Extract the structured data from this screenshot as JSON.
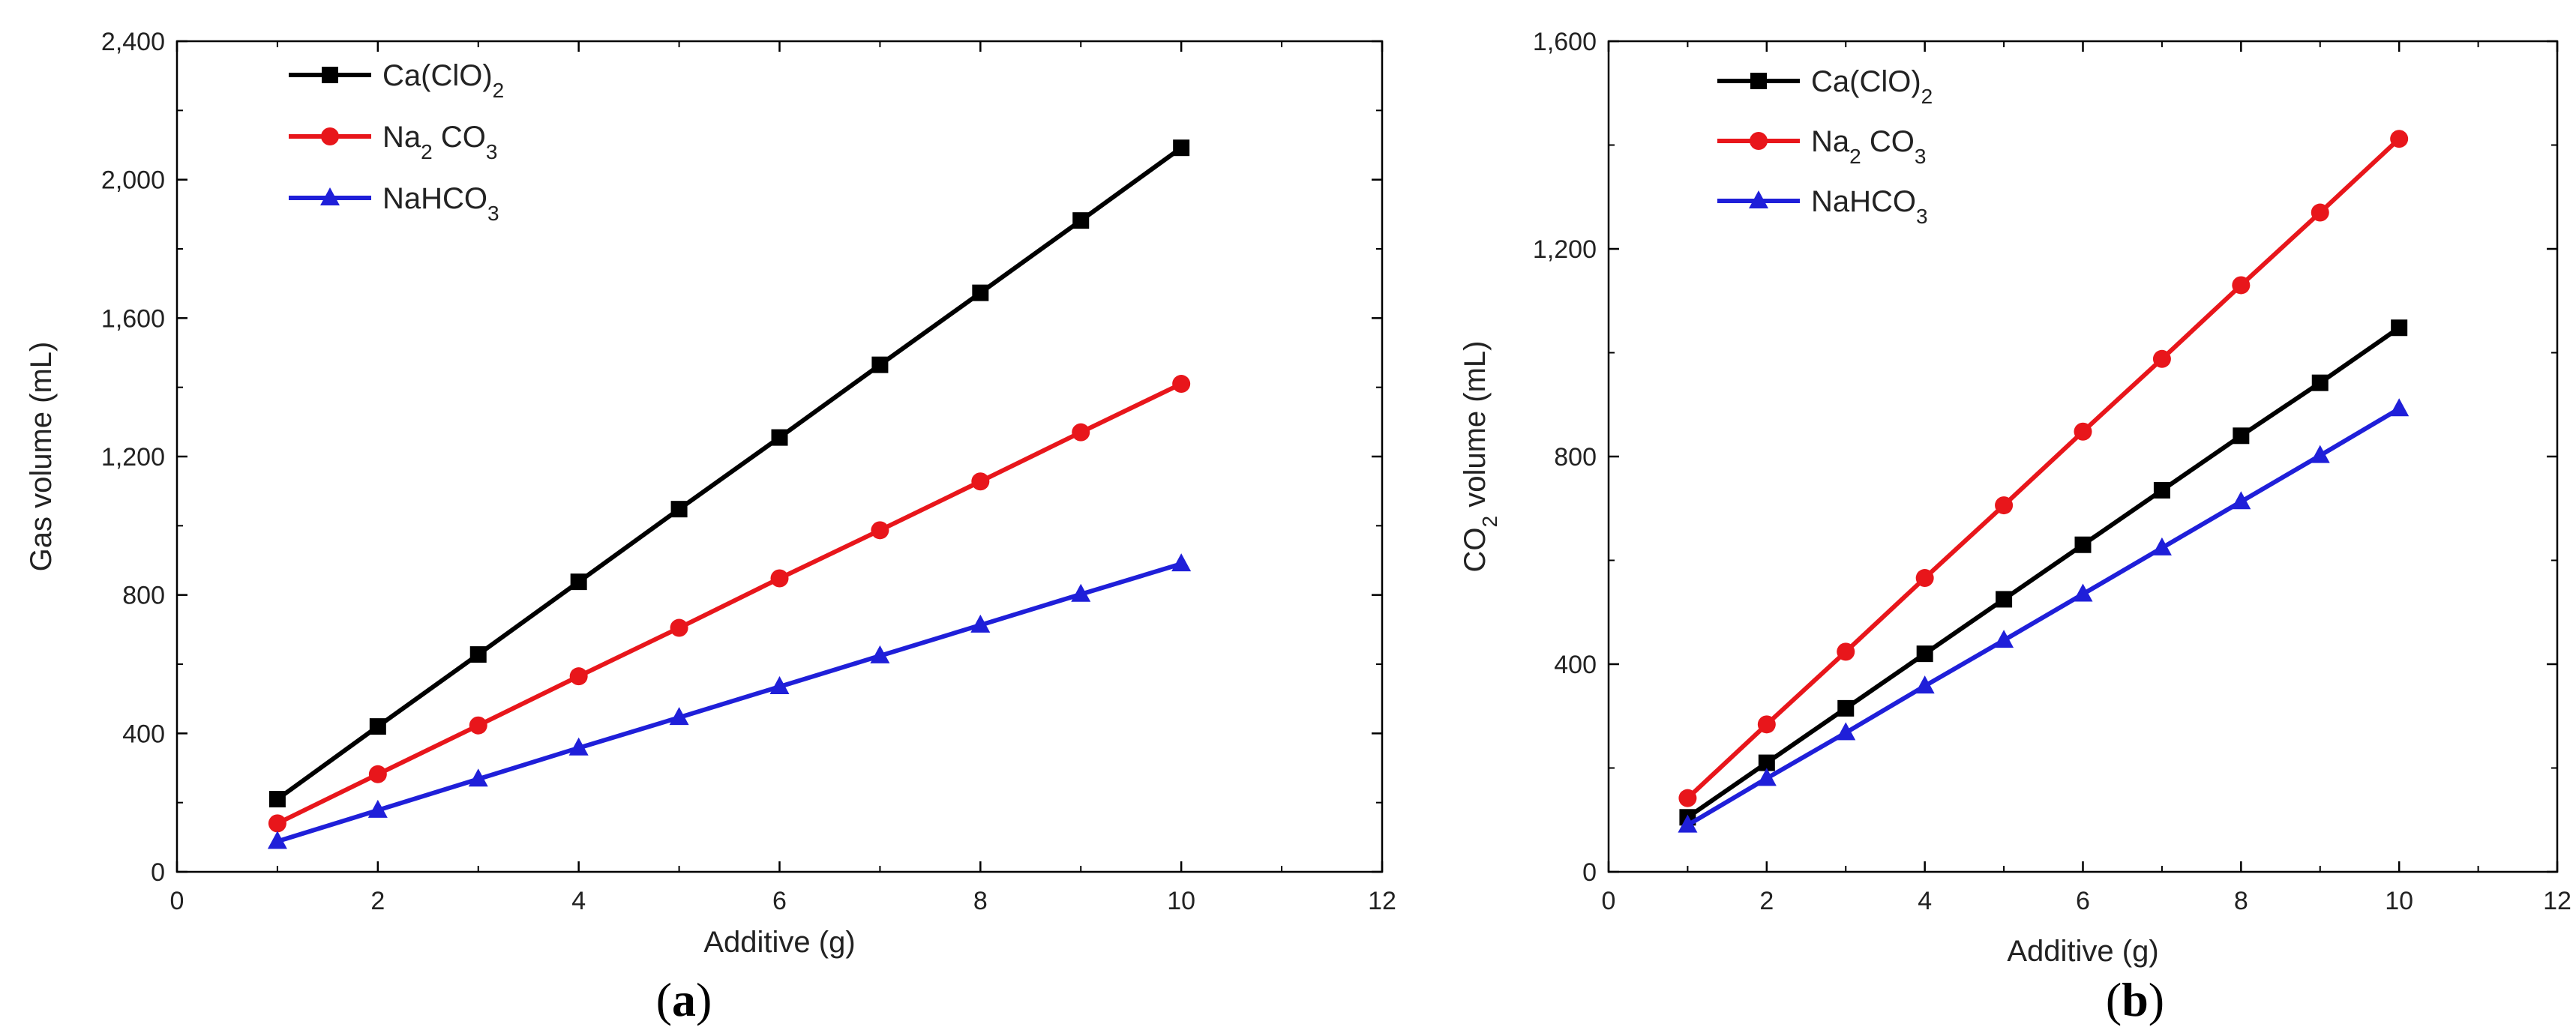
{
  "chart_data": [
    {
      "type": "line",
      "panel_label": "(a)",
      "panel_letter": "a",
      "title": "",
      "xlabel": "Additive (g)",
      "ylabel": "Gas volume (mL)",
      "xlim": [
        0,
        12
      ],
      "ylim": [
        0,
        2400
      ],
      "x_ticks": [
        0,
        2,
        4,
        6,
        8,
        10,
        12
      ],
      "y_ticks": [
        0,
        400,
        800,
        1200,
        1600,
        2000,
        2400
      ],
      "x_tick_labels": [
        "0",
        "2",
        "4",
        "6",
        "8",
        "10",
        "12"
      ],
      "y_tick_labels": [
        "0",
        "400",
        "800",
        "1,200",
        "1,600",
        "2,000",
        "2,400"
      ],
      "grid": false,
      "legend_position": "top-left",
      "x": [
        1,
        2,
        3,
        4,
        5,
        6,
        7,
        8,
        9,
        10
      ],
      "series": [
        {
          "name": "Ca(ClO)2",
          "label_parts": [
            {
              "t": "Ca(ClO)"
            },
            {
              "t": "2",
              "sub": true
            }
          ],
          "color": "#000000",
          "marker": "square",
          "values": [
            210,
            420,
            628,
            838,
            1048,
            1255,
            1465,
            1673,
            1882,
            2092
          ]
        },
        {
          "name": "Na2 CO3",
          "label_parts": [
            {
              "t": "Na"
            },
            {
              "t": "2",
              "sub": true
            },
            {
              "t": " CO"
            },
            {
              "t": "3",
              "sub": true
            }
          ],
          "color": "#e8161b",
          "marker": "circle",
          "values": [
            140,
            282,
            423,
            565,
            705,
            848,
            987,
            1128,
            1270,
            1410
          ]
        },
        {
          "name": "NaHCO3",
          "label_parts": [
            {
              "t": "NaHCO"
            },
            {
              "t": "3",
              "sub": true
            }
          ],
          "color": "#1f1fd9",
          "marker": "triangle",
          "values": [
            88,
            178,
            268,
            358,
            446,
            535,
            624,
            713,
            802,
            890
          ]
        }
      ]
    },
    {
      "type": "line",
      "panel_label": "(b)",
      "panel_letter": "b",
      "title": "",
      "xlabel": "Additive (g)",
      "ylabel": "CO2 volume (mL)",
      "xlim": [
        0,
        12
      ],
      "ylim": [
        0,
        1600
      ],
      "x_ticks": [
        0,
        2,
        4,
        6,
        8,
        10,
        12
      ],
      "y_ticks": [
        0,
        400,
        800,
        1200,
        1600
      ],
      "x_tick_labels": [
        "0",
        "2",
        "4",
        "6",
        "8",
        "10",
        "12"
      ],
      "y_tick_labels": [
        "0",
        "400",
        "800",
        "1,200",
        "1,600"
      ],
      "grid": false,
      "legend_position": "top-left",
      "x": [
        1,
        2,
        3,
        4,
        5,
        6,
        7,
        8,
        9,
        10
      ],
      "series": [
        {
          "name": "Ca(ClO)2",
          "label_parts": [
            {
              "t": "Ca(ClO)"
            },
            {
              "t": "2",
              "sub": true
            }
          ],
          "color": "#000000",
          "marker": "square",
          "values": [
            105,
            210,
            315,
            420,
            525,
            630,
            735,
            840,
            942,
            1048
          ]
        },
        {
          "name": "Na2 CO3",
          "label_parts": [
            {
              "t": "Na"
            },
            {
              "t": "2",
              "sub": true
            },
            {
              "t": " CO"
            },
            {
              "t": "3",
              "sub": true
            }
          ],
          "color": "#e8161b",
          "marker": "circle",
          "values": [
            142,
            284,
            424,
            566,
            706,
            848,
            988,
            1130,
            1270,
            1412
          ]
        },
        {
          "name": "NaHCO3",
          "label_parts": [
            {
              "t": "NaHCO"
            },
            {
              "t": "3",
              "sub": true
            }
          ],
          "color": "#1f1fd9",
          "marker": "triangle",
          "values": [
            90,
            180,
            268,
            358,
            446,
            535,
            624,
            713,
            802,
            892
          ]
        }
      ]
    }
  ]
}
